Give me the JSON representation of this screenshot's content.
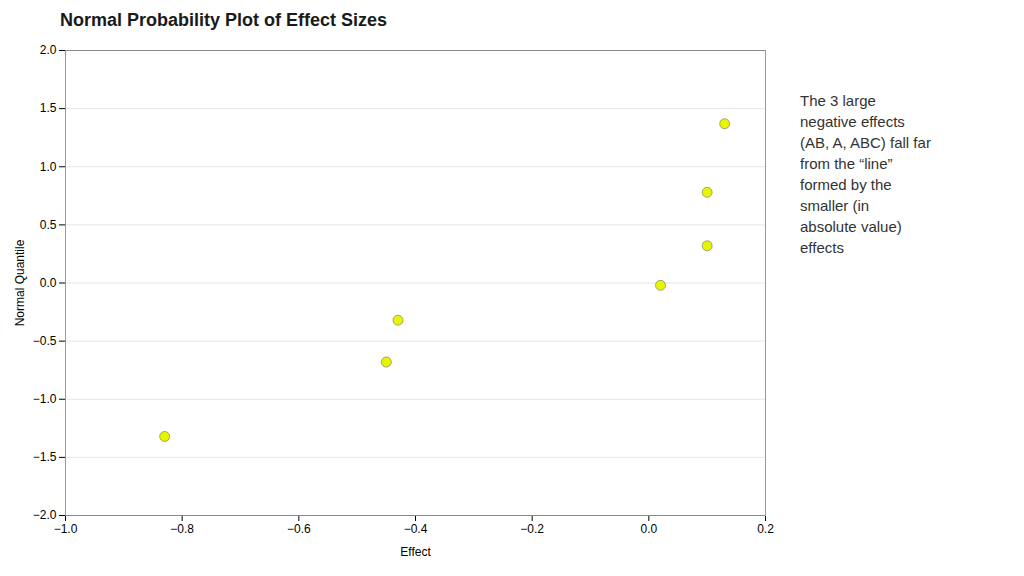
{
  "chart_data": {
    "type": "scatter",
    "title": "Normal Probability Plot of Effect Sizes",
    "xlabel": "Effect",
    "ylabel": "Normal Quantile",
    "x": [
      -0.83,
      -0.45,
      -0.43,
      0.02,
      0.1,
      0.1,
      0.13
    ],
    "values": [
      -1.32,
      -0.68,
      -0.32,
      -0.02,
      0.32,
      0.78,
      1.37
    ],
    "color": "#e8f500",
    "xlim": [
      -1,
      0.2
    ],
    "ylim": [
      -2,
      2
    ],
    "xticks": [
      {
        "value": -1,
        "label": "−1.0"
      },
      {
        "value": -0.8,
        "label": "−0.8"
      },
      {
        "value": -0.6,
        "label": "−0.6"
      },
      {
        "value": -0.4,
        "label": "−0.4"
      },
      {
        "value": -0.2,
        "label": "−0.2"
      },
      {
        "value": 0,
        "label": "0.0"
      },
      0.2
    ],
    "yticks": [
      {
        "value": -2,
        "label": "−2.0"
      },
      {
        "value": -1.5,
        "label": "−1.5"
      },
      {
        "value": -1,
        "label": "−1.0"
      },
      {
        "value": -0.5,
        "label": "−0.5"
      },
      {
        "value": 0,
        "label": "0.0"
      },
      0.5,
      {
        "value": 1,
        "label": "1.0"
      },
      1.5,
      {
        "value": 2,
        "label": "2.0"
      }
    ],
    "grid": "y",
    "annotation": "The 3 large\nnegative effects\n(AB, A, ABC) fall far\nfrom the “line”\nformed by the\nsmaller (in\nabsolute value)\neffects"
  }
}
